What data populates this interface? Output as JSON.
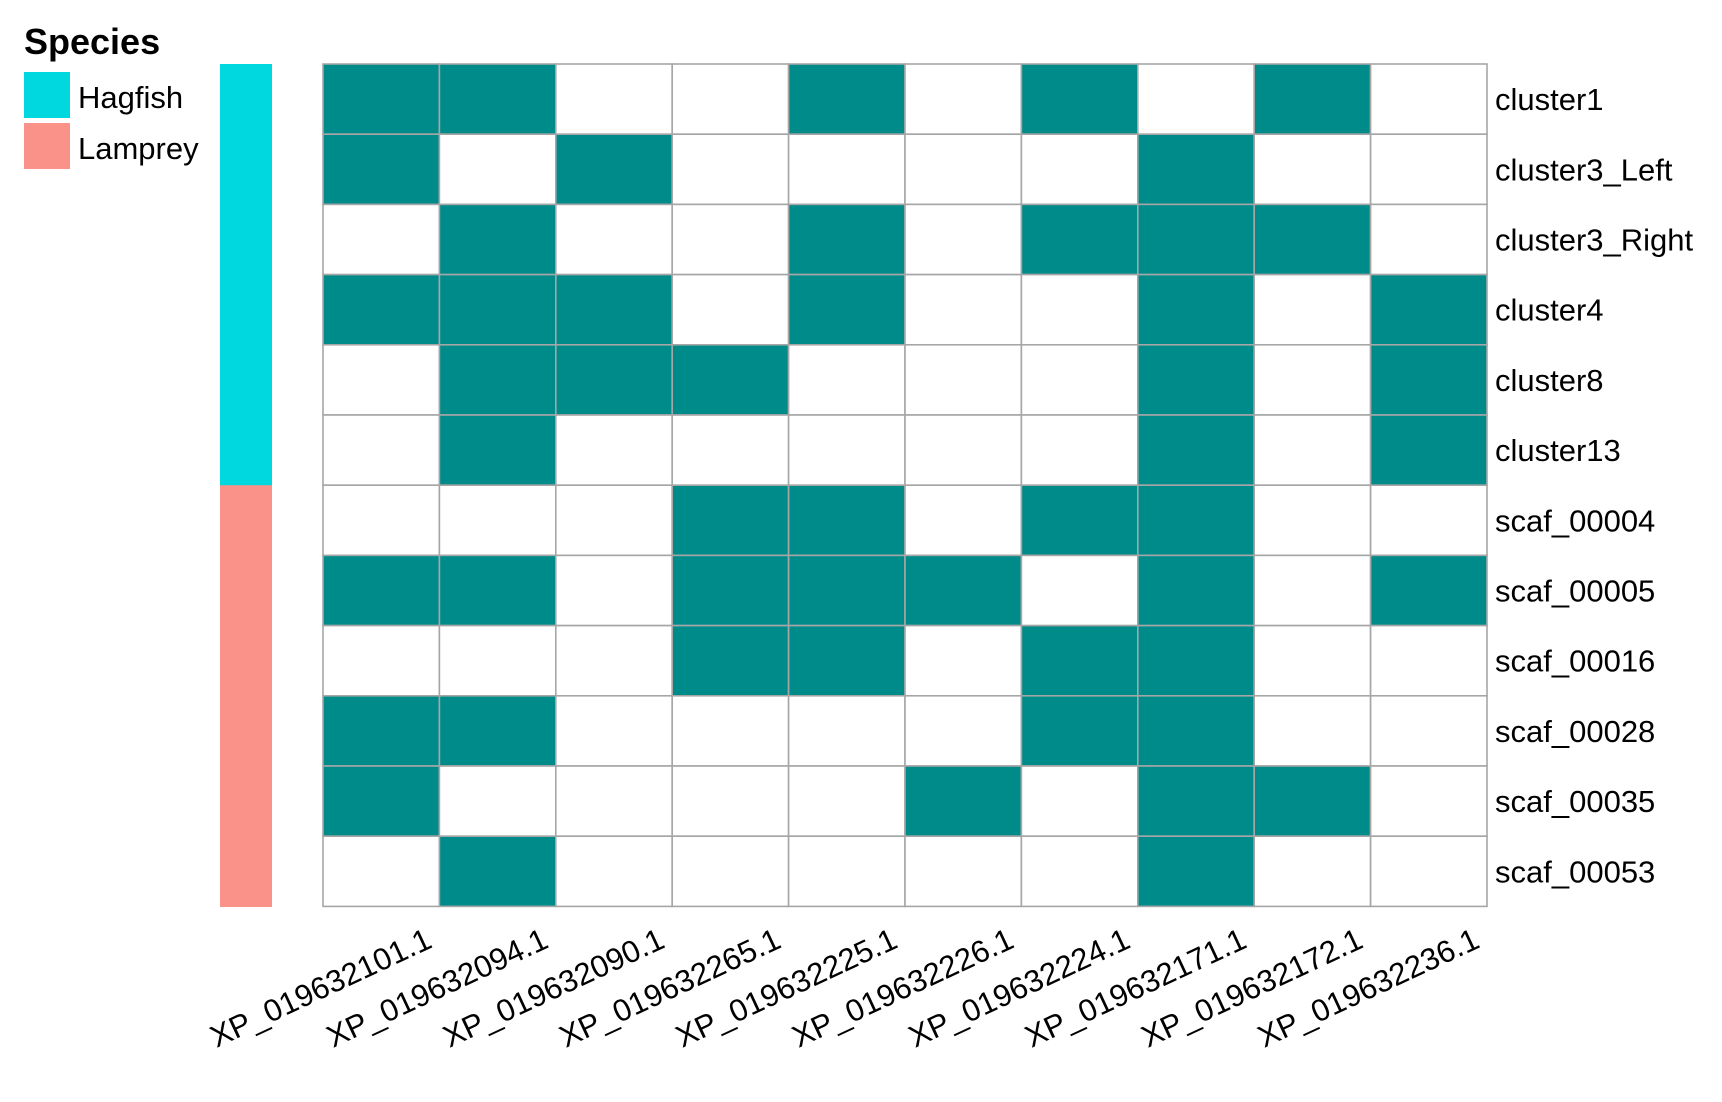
{
  "chart_data": {
    "type": "heatmap",
    "title": "",
    "xlabel": "",
    "ylabel": "",
    "columns": [
      "XP_019632101.1",
      "XP_019632094.1",
      "XP_019632090.1",
      "XP_019632265.1",
      "XP_019632225.1",
      "XP_019632226.1",
      "XP_019632224.1",
      "XP_019632171.1",
      "XP_019632172.1",
      "XP_019632236.1"
    ],
    "rows": [
      "cluster1",
      "cluster3_Left",
      "cluster3_Right",
      "cluster4",
      "cluster8",
      "cluster13",
      "scaf_00004",
      "scaf_00005",
      "scaf_00016",
      "scaf_00028",
      "scaf_00035",
      "scaf_00053"
    ],
    "row_species": [
      "Hagfish",
      "Hagfish",
      "Hagfish",
      "Hagfish",
      "Hagfish",
      "Hagfish",
      "Lamprey",
      "Lamprey",
      "Lamprey",
      "Lamprey",
      "Lamprey",
      "Lamprey"
    ],
    "values": [
      [
        1,
        1,
        0,
        0,
        1,
        0,
        1,
        0,
        1,
        0
      ],
      [
        1,
        0,
        1,
        0,
        0,
        0,
        0,
        1,
        0,
        0
      ],
      [
        0,
        1,
        0,
        0,
        1,
        0,
        1,
        1,
        1,
        0
      ],
      [
        1,
        1,
        1,
        0,
        1,
        0,
        0,
        1,
        0,
        1
      ],
      [
        0,
        1,
        1,
        1,
        0,
        0,
        0,
        1,
        0,
        1
      ],
      [
        0,
        1,
        0,
        0,
        0,
        0,
        0,
        1,
        0,
        1
      ],
      [
        0,
        0,
        0,
        1,
        1,
        0,
        1,
        1,
        0,
        0
      ],
      [
        1,
        1,
        0,
        1,
        1,
        1,
        0,
        1,
        0,
        1
      ],
      [
        0,
        0,
        0,
        1,
        1,
        0,
        1,
        1,
        0,
        0
      ],
      [
        1,
        1,
        0,
        0,
        0,
        0,
        1,
        1,
        0,
        0
      ],
      [
        1,
        0,
        0,
        0,
        0,
        1,
        0,
        1,
        1,
        0
      ],
      [
        0,
        1,
        0,
        0,
        0,
        0,
        0,
        1,
        0,
        0
      ]
    ],
    "colors": {
      "present": "#008B8B",
      "absent": "#FFFFFF",
      "grid": "#A6A6A6"
    },
    "legend": {
      "title": "Species",
      "position": "top-left",
      "items": [
        {
          "label": "Hagfish",
          "color": "#00D8E0"
        },
        {
          "label": "Lamprey",
          "color": "#FA928A"
        }
      ]
    }
  }
}
